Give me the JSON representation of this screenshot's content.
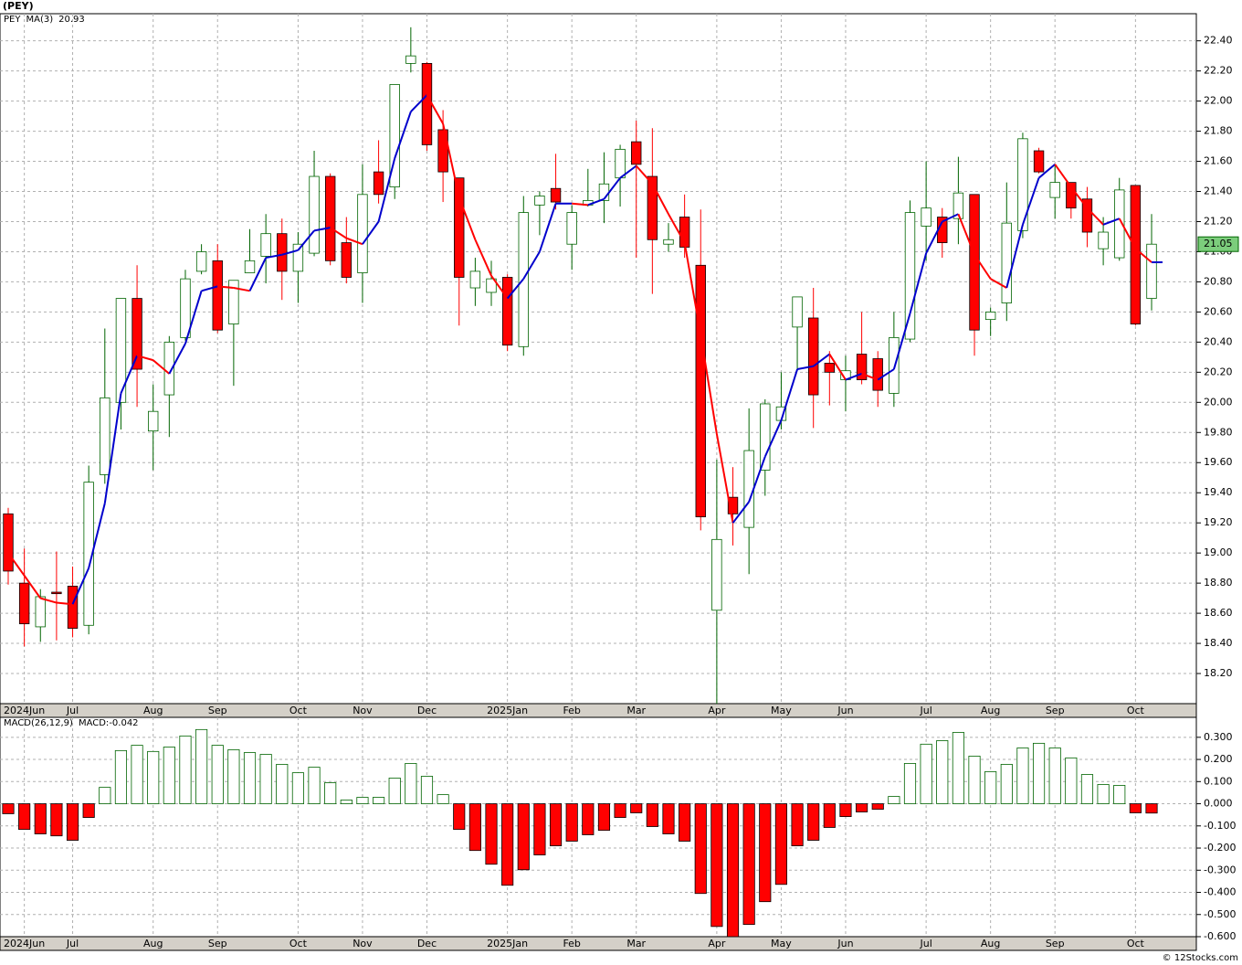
{
  "chart_data": [
    {
      "type": "candlestick",
      "title": "(PEY)",
      "categories": [
        null,
        "2024Jun",
        null,
        null,
        "Jul",
        null,
        null,
        null,
        null,
        "Aug",
        null,
        null,
        null,
        "Sep",
        null,
        null,
        null,
        null,
        "Oct",
        null,
        null,
        null,
        "Nov",
        null,
        null,
        null,
        "Dec",
        null,
        null,
        null,
        null,
        "2025Jan",
        null,
        null,
        null,
        "Feb",
        null,
        null,
        null,
        "Mar",
        null,
        null,
        null,
        null,
        "Apr",
        null,
        null,
        null,
        "May",
        null,
        null,
        null,
        "Jun",
        null,
        null,
        null,
        null,
        "Jul",
        null,
        null,
        null,
        "Aug",
        null,
        null,
        null,
        "Sep",
        null,
        null,
        null,
        null,
        "Oct",
        null
      ],
      "series": [
        {
          "name": "PEY",
          "up_color": "#006400",
          "down_color": "#ff0000",
          "open": [
            19.26,
            18.8,
            18.51,
            18.74,
            18.78,
            18.52,
            19.52,
            20.0,
            20.69,
            19.81,
            20.05,
            20.43,
            20.87,
            20.94,
            20.52,
            20.86,
            20.97,
            21.12,
            20.87,
            20.99,
            21.5,
            21.06,
            20.86,
            21.53,
            21.43,
            22.25,
            22.25,
            21.81,
            21.49,
            20.76,
            20.73,
            20.83,
            20.37,
            21.31,
            21.42,
            21.05,
            21.31,
            21.34,
            21.49,
            21.73,
            21.5,
            21.05,
            21.23,
            20.91,
            18.62,
            19.37,
            19.17,
            19.55,
            19.88,
            20.5,
            20.56,
            20.26,
            20.15,
            20.32,
            20.29,
            20.06,
            20.42,
            21.17,
            21.23,
            21.22,
            21.38,
            20.55,
            20.66,
            21.14,
            21.67,
            21.36,
            21.46,
            21.35,
            21.02,
            20.96,
            21.44,
            20.69
          ],
          "high": [
            19.3,
            19.03,
            18.76,
            19.01,
            18.91,
            19.58,
            20.49,
            20.69,
            20.91,
            20.12,
            20.44,
            20.88,
            21.05,
            21.05,
            20.81,
            21.15,
            21.25,
            21.22,
            21.13,
            21.67,
            21.52,
            21.23,
            21.58,
            21.74,
            22.11,
            22.49,
            22.26,
            21.94,
            21.49,
            20.96,
            20.94,
            20.85,
            21.37,
            21.4,
            21.65,
            21.31,
            21.55,
            21.66,
            21.71,
            21.87,
            21.82,
            21.19,
            21.38,
            21.28,
            19.62,
            19.57,
            19.96,
            20.02,
            20.2,
            20.7,
            20.76,
            20.34,
            20.31,
            20.6,
            20.34,
            20.6,
            21.34,
            21.6,
            21.29,
            21.63,
            21.38,
            20.63,
            21.46,
            21.79,
            21.69,
            21.57,
            21.46,
            21.43,
            21.23,
            21.49,
            21.44,
            21.25
          ],
          "low": [
            18.79,
            18.38,
            18.41,
            18.42,
            18.44,
            18.46,
            19.46,
            19.82,
            19.97,
            19.55,
            19.77,
            20.41,
            20.85,
            20.46,
            20.11,
            20.86,
            20.79,
            20.68,
            20.66,
            20.97,
            20.91,
            20.79,
            20.66,
            21.32,
            21.35,
            22.19,
            21.67,
            21.33,
            20.51,
            20.64,
            20.64,
            20.34,
            20.31,
            21.11,
            21.28,
            20.88,
            21.3,
            21.19,
            21.3,
            20.96,
            20.72,
            21.0,
            20.96,
            19.15,
            18.0,
            19.05,
            18.86,
            19.38,
            19.82,
            20.21,
            19.83,
            19.98,
            19.94,
            20.12,
            19.97,
            19.97,
            20.4,
            20.94,
            20.96,
            21.05,
            20.31,
            20.44,
            20.54,
            21.09,
            21.52,
            21.22,
            21.22,
            21.03,
            20.91,
            20.94,
            20.51,
            20.61
          ],
          "close": [
            18.88,
            18.53,
            18.71,
            18.73,
            18.5,
            19.47,
            20.03,
            20.69,
            20.22,
            19.94,
            20.4,
            20.82,
            21.0,
            20.48,
            20.81,
            20.94,
            21.12,
            20.87,
            21.05,
            21.5,
            20.94,
            20.83,
            21.38,
            21.38,
            22.11,
            22.3,
            21.71,
            21.53,
            20.83,
            20.87,
            20.82,
            20.38,
            21.26,
            21.37,
            21.33,
            21.26,
            21.34,
            21.45,
            21.68,
            21.58,
            21.08,
            21.08,
            21.03,
            19.24,
            19.09,
            19.26,
            19.68,
            19.99,
            19.97,
            20.7,
            20.05,
            20.2,
            20.21,
            20.15,
            20.08,
            20.43,
            21.26,
            21.29,
            21.06,
            21.39,
            20.48,
            20.6,
            21.19,
            21.75,
            21.53,
            21.46,
            21.29,
            21.13,
            21.13,
            21.41,
            20.52,
            21.05
          ]
        }
      ],
      "overlays": [
        {
          "name": "MA(3)",
          "type": "line",
          "up_color": "#0000cc",
          "down_color": "#ff0000",
          "values": [
            19.0,
            18.85,
            18.7,
            18.67,
            18.66,
            18.9,
            19.33,
            20.06,
            20.31,
            20.28,
            20.19,
            20.39,
            20.74,
            20.77,
            20.76,
            20.74,
            20.96,
            20.98,
            21.01,
            21.14,
            21.16,
            21.09,
            21.05,
            21.2,
            21.62,
            21.93,
            22.04,
            21.85,
            21.36,
            21.08,
            20.84,
            20.69,
            20.82,
            21.0,
            21.32,
            21.32,
            21.31,
            21.35,
            21.49,
            21.57,
            21.45,
            21.25,
            21.06,
            20.45,
            19.79,
            19.2,
            19.34,
            19.64,
            19.88,
            20.22,
            20.24,
            20.32,
            20.15,
            20.19,
            20.15,
            20.22,
            20.59,
            20.99,
            21.2,
            21.25,
            20.98,
            20.82,
            20.76,
            21.18,
            21.49,
            21.58,
            21.43,
            21.29,
            21.18,
            21.22,
            21.02,
            20.93
          ]
        }
      ],
      "price_label_color": "#7ccd7c",
      "ylim": [
        18.0,
        22.58
      ],
      "yticks": [
        {
          "value": 18.2,
          "label": "18.20"
        },
        {
          "value": 18.4,
          "label": "18.40"
        },
        {
          "value": 18.6,
          "label": "18.60"
        },
        {
          "value": 18.8,
          "label": "18.80"
        },
        {
          "value": 19.0,
          "label": "19.00"
        },
        {
          "value": 19.2,
          "label": "19.20"
        },
        {
          "value": 19.4,
          "label": "19.40"
        },
        {
          "value": 19.6,
          "label": "19.60"
        },
        {
          "value": 19.8,
          "label": "19.80"
        },
        {
          "value": 20.0,
          "label": "20.00"
        },
        {
          "value": 20.2,
          "label": "20.20"
        },
        {
          "value": 20.4,
          "label": "20.40"
        },
        {
          "value": 20.6,
          "label": "20.60"
        },
        {
          "value": 20.8,
          "label": "20.80"
        },
        {
          "value": 21.0,
          "label": "21.00"
        },
        {
          "value": 21.2,
          "label": "21.20"
        },
        {
          "value": 21.4,
          "label": "21.40"
        },
        {
          "value": 21.6,
          "label": "21.60"
        },
        {
          "value": 21.8,
          "label": "21.80"
        },
        {
          "value": 22.0,
          "label": "22.00"
        },
        {
          "value": 22.2,
          "label": "22.20"
        },
        {
          "value": 22.4,
          "label": "22.40"
        }
      ],
      "grid": true
    },
    {
      "type": "bar",
      "title": "MACD(26,12,9)",
      "categories": [
        null,
        "2024Jun",
        null,
        null,
        "Jul",
        null,
        null,
        null,
        null,
        "Aug",
        null,
        null,
        null,
        "Sep",
        null,
        null,
        null,
        null,
        "Oct",
        null,
        null,
        null,
        "Nov",
        null,
        null,
        null,
        "Dec",
        null,
        null,
        null,
        null,
        "2025Jan",
        null,
        null,
        null,
        "Feb",
        null,
        null,
        null,
        "Mar",
        null,
        null,
        null,
        null,
        "Apr",
        null,
        null,
        null,
        "May",
        null,
        null,
        null,
        "Jun",
        null,
        null,
        null,
        null,
        "Jul",
        null,
        null,
        null,
        "Aug",
        null,
        null,
        null,
        "Sep",
        null,
        null,
        null,
        null,
        "Oct",
        null
      ],
      "series": [
        {
          "name": "MACD:",
          "legend_color": "#0000cc",
          "up_color": "#006400",
          "down_color": "#ff0000",
          "values": [
            -0.045,
            -0.116,
            -0.136,
            -0.145,
            -0.165,
            -0.062,
            0.074,
            0.24,
            0.264,
            0.236,
            0.256,
            0.306,
            0.335,
            0.264,
            0.244,
            0.231,
            0.223,
            0.178,
            0.14,
            0.165,
            0.095,
            0.017,
            0.029,
            0.029,
            0.116,
            0.182,
            0.124,
            0.041,
            -0.116,
            -0.211,
            -0.273,
            -0.368,
            -0.298,
            -0.231,
            -0.19,
            -0.169,
            -0.14,
            -0.12,
            -0.062,
            -0.041,
            -0.103,
            -0.136,
            -0.169,
            -0.405,
            -0.554,
            -0.6,
            -0.545,
            -0.442,
            -0.364,
            -0.19,
            -0.165,
            -0.107,
            -0.058,
            -0.037,
            -0.025,
            0.033,
            0.182,
            0.269,
            0.285,
            0.322,
            0.215,
            0.145,
            0.178,
            0.252,
            0.273,
            0.252,
            0.207,
            0.132,
            0.087,
            0.083,
            -0.041,
            -0.042
          ]
        }
      ],
      "ylim": [
        -0.6,
        0.39
      ],
      "yticks": [
        {
          "value": -0.6,
          "label": "-0.600"
        },
        {
          "value": -0.5,
          "label": "-0.500"
        },
        {
          "value": -0.4,
          "label": "-0.400"
        },
        {
          "value": -0.3,
          "label": "-0.300"
        },
        {
          "value": -0.2,
          "label": "-0.200"
        },
        {
          "value": -0.1,
          "label": "-0.100"
        },
        {
          "value": 0,
          "label": "0.000"
        },
        {
          "value": 0.1,
          "label": "0.100"
        },
        {
          "value": 0.2,
          "label": "0.200"
        },
        {
          "value": 0.3,
          "label": "0.300"
        }
      ],
      "grid": true
    }
  ],
  "footer": "© 12Stocks.com"
}
